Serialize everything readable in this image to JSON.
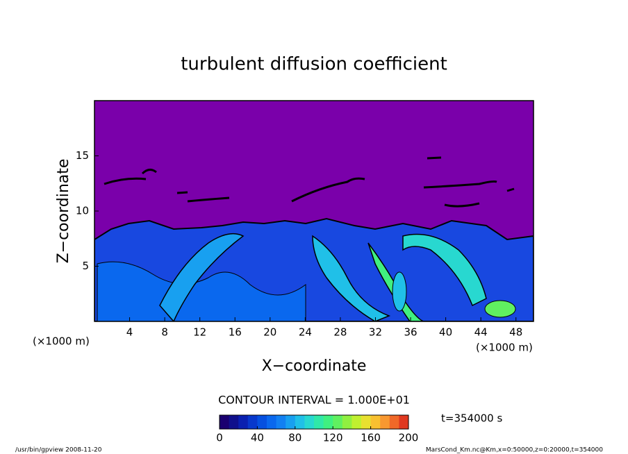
{
  "chart_data": {
    "type": "contour",
    "title": "turbulent diffusion coefficient",
    "x_label": "X−coordinate",
    "y_label": "Z−coordinate",
    "x_unit_left": "(×1000 m)",
    "x_unit_right": "(×1000 m)",
    "xlim": [
      0,
      50
    ],
    "xticks": [
      4,
      8,
      12,
      16,
      20,
      24,
      28,
      32,
      36,
      40,
      44,
      48
    ],
    "ylim": [
      0,
      20
    ],
    "yticks": [
      5,
      10,
      15
    ],
    "contour_interval": "CONTOUR INTERVAL = 1.000E+01",
    "time_label": "t=354000 s",
    "colorbar": {
      "lim": [
        0,
        200
      ],
      "ticks": [
        0,
        40,
        80,
        120,
        160,
        200
      ],
      "colors": [
        "#1a0070",
        "#10108c",
        "#0a20b0",
        "#0838cc",
        "#0650e0",
        "#0a68ee",
        "#1280f2",
        "#18a0f0",
        "#20c0e8",
        "#28d8d0",
        "#30e8a8",
        "#40f080",
        "#60f060",
        "#90f040",
        "#c0f030",
        "#e8e030",
        "#f8c030",
        "#f89830",
        "#f06828",
        "#e03820"
      ]
    },
    "footer_left": "/usr/bin/gpview  2008-11-20",
    "footer_right": "MarsCond_Km.nc@Km,x=0:50000,z=0:20000,t=354000"
  }
}
